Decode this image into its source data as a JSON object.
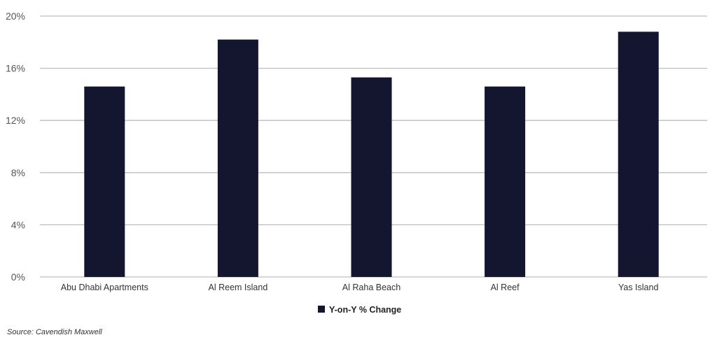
{
  "chart_data": {
    "type": "bar",
    "categories": [
      "Abu Dhabi Apartments",
      "Al Reem Island",
      "Al Raha Beach",
      "Al Reef",
      "Yas Island"
    ],
    "series": [
      {
        "name": "Y-on-Y % Change",
        "values": [
          14.6,
          18.2,
          15.3,
          14.6,
          18.8
        ],
        "color": "#14152e"
      }
    ],
    "ylim": [
      0,
      20
    ],
    "yticks": [
      0,
      4,
      8,
      12,
      16,
      20
    ],
    "ytick_format": "%",
    "grid": true,
    "legend": "bottom",
    "xlabel": "",
    "ylabel": ""
  },
  "source": "Source: Cavendish Maxwell"
}
